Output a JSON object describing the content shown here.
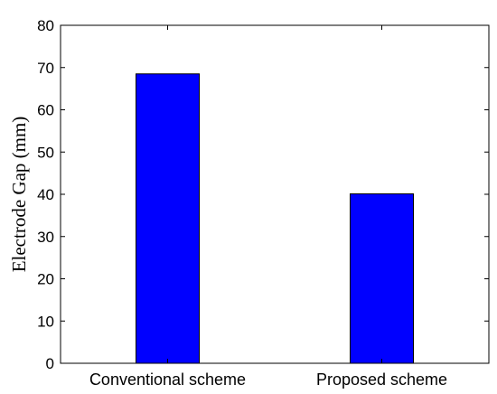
{
  "chart_data": {
    "type": "bar",
    "categories": [
      "Conventional scheme",
      "Proposed scheme"
    ],
    "values": [
      68.5,
      40.1
    ],
    "title": "",
    "xlabel": "",
    "ylabel": "Electrode Gap (mm)",
    "ylim": [
      0,
      80
    ],
    "yticks": [
      "0",
      "10",
      "20",
      "30",
      "40",
      "50",
      "60",
      "70",
      "80"
    ],
    "grid": false,
    "legend": "none",
    "bar_color": "#0000ff",
    "bar_edge_color": "#000000"
  }
}
